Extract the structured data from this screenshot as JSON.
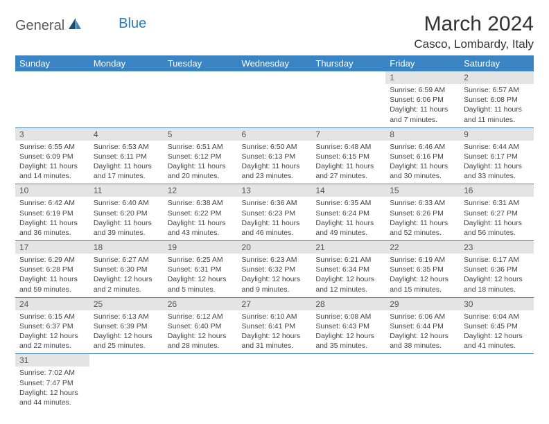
{
  "header": {
    "logo_part1": "General",
    "logo_part2": "Blue",
    "month_title": "March 2024",
    "location": "Casco, Lombardy, Italy"
  },
  "colors": {
    "header_bg": "#3b84c4",
    "header_text": "#ffffff",
    "daynum_bg": "#e4e4e4",
    "row_border": "#3b84c4",
    "logo_gray": "#5a5a5a",
    "logo_blue": "#2a7ab8",
    "sail_dark": "#1a4a7a",
    "sail_light": "#3b84c4"
  },
  "typography": {
    "title_fontsize": 30,
    "location_fontsize": 17,
    "header_fontsize": 13,
    "daynum_fontsize": 12,
    "body_fontsize": 10.5
  },
  "day_headers": [
    "Sunday",
    "Monday",
    "Tuesday",
    "Wednesday",
    "Thursday",
    "Friday",
    "Saturday"
  ],
  "weeks": [
    [
      {
        "num": "",
        "sunrise": "",
        "sunset": "",
        "daylight": ""
      },
      {
        "num": "",
        "sunrise": "",
        "sunset": "",
        "daylight": ""
      },
      {
        "num": "",
        "sunrise": "",
        "sunset": "",
        "daylight": ""
      },
      {
        "num": "",
        "sunrise": "",
        "sunset": "",
        "daylight": ""
      },
      {
        "num": "",
        "sunrise": "",
        "sunset": "",
        "daylight": ""
      },
      {
        "num": "1",
        "sunrise": "Sunrise: 6:59 AM",
        "sunset": "Sunset: 6:06 PM",
        "daylight": "Daylight: 11 hours and 7 minutes."
      },
      {
        "num": "2",
        "sunrise": "Sunrise: 6:57 AM",
        "sunset": "Sunset: 6:08 PM",
        "daylight": "Daylight: 11 hours and 11 minutes."
      }
    ],
    [
      {
        "num": "3",
        "sunrise": "Sunrise: 6:55 AM",
        "sunset": "Sunset: 6:09 PM",
        "daylight": "Daylight: 11 hours and 14 minutes."
      },
      {
        "num": "4",
        "sunrise": "Sunrise: 6:53 AM",
        "sunset": "Sunset: 6:11 PM",
        "daylight": "Daylight: 11 hours and 17 minutes."
      },
      {
        "num": "5",
        "sunrise": "Sunrise: 6:51 AM",
        "sunset": "Sunset: 6:12 PM",
        "daylight": "Daylight: 11 hours and 20 minutes."
      },
      {
        "num": "6",
        "sunrise": "Sunrise: 6:50 AM",
        "sunset": "Sunset: 6:13 PM",
        "daylight": "Daylight: 11 hours and 23 minutes."
      },
      {
        "num": "7",
        "sunrise": "Sunrise: 6:48 AM",
        "sunset": "Sunset: 6:15 PM",
        "daylight": "Daylight: 11 hours and 27 minutes."
      },
      {
        "num": "8",
        "sunrise": "Sunrise: 6:46 AM",
        "sunset": "Sunset: 6:16 PM",
        "daylight": "Daylight: 11 hours and 30 minutes."
      },
      {
        "num": "9",
        "sunrise": "Sunrise: 6:44 AM",
        "sunset": "Sunset: 6:17 PM",
        "daylight": "Daylight: 11 hours and 33 minutes."
      }
    ],
    [
      {
        "num": "10",
        "sunrise": "Sunrise: 6:42 AM",
        "sunset": "Sunset: 6:19 PM",
        "daylight": "Daylight: 11 hours and 36 minutes."
      },
      {
        "num": "11",
        "sunrise": "Sunrise: 6:40 AM",
        "sunset": "Sunset: 6:20 PM",
        "daylight": "Daylight: 11 hours and 39 minutes."
      },
      {
        "num": "12",
        "sunrise": "Sunrise: 6:38 AM",
        "sunset": "Sunset: 6:22 PM",
        "daylight": "Daylight: 11 hours and 43 minutes."
      },
      {
        "num": "13",
        "sunrise": "Sunrise: 6:36 AM",
        "sunset": "Sunset: 6:23 PM",
        "daylight": "Daylight: 11 hours and 46 minutes."
      },
      {
        "num": "14",
        "sunrise": "Sunrise: 6:35 AM",
        "sunset": "Sunset: 6:24 PM",
        "daylight": "Daylight: 11 hours and 49 minutes."
      },
      {
        "num": "15",
        "sunrise": "Sunrise: 6:33 AM",
        "sunset": "Sunset: 6:26 PM",
        "daylight": "Daylight: 11 hours and 52 minutes."
      },
      {
        "num": "16",
        "sunrise": "Sunrise: 6:31 AM",
        "sunset": "Sunset: 6:27 PM",
        "daylight": "Daylight: 11 hours and 56 minutes."
      }
    ],
    [
      {
        "num": "17",
        "sunrise": "Sunrise: 6:29 AM",
        "sunset": "Sunset: 6:28 PM",
        "daylight": "Daylight: 11 hours and 59 minutes."
      },
      {
        "num": "18",
        "sunrise": "Sunrise: 6:27 AM",
        "sunset": "Sunset: 6:30 PM",
        "daylight": "Daylight: 12 hours and 2 minutes."
      },
      {
        "num": "19",
        "sunrise": "Sunrise: 6:25 AM",
        "sunset": "Sunset: 6:31 PM",
        "daylight": "Daylight: 12 hours and 5 minutes."
      },
      {
        "num": "20",
        "sunrise": "Sunrise: 6:23 AM",
        "sunset": "Sunset: 6:32 PM",
        "daylight": "Daylight: 12 hours and 9 minutes."
      },
      {
        "num": "21",
        "sunrise": "Sunrise: 6:21 AM",
        "sunset": "Sunset: 6:34 PM",
        "daylight": "Daylight: 12 hours and 12 minutes."
      },
      {
        "num": "22",
        "sunrise": "Sunrise: 6:19 AM",
        "sunset": "Sunset: 6:35 PM",
        "daylight": "Daylight: 12 hours and 15 minutes."
      },
      {
        "num": "23",
        "sunrise": "Sunrise: 6:17 AM",
        "sunset": "Sunset: 6:36 PM",
        "daylight": "Daylight: 12 hours and 18 minutes."
      }
    ],
    [
      {
        "num": "24",
        "sunrise": "Sunrise: 6:15 AM",
        "sunset": "Sunset: 6:37 PM",
        "daylight": "Daylight: 12 hours and 22 minutes."
      },
      {
        "num": "25",
        "sunrise": "Sunrise: 6:13 AM",
        "sunset": "Sunset: 6:39 PM",
        "daylight": "Daylight: 12 hours and 25 minutes."
      },
      {
        "num": "26",
        "sunrise": "Sunrise: 6:12 AM",
        "sunset": "Sunset: 6:40 PM",
        "daylight": "Daylight: 12 hours and 28 minutes."
      },
      {
        "num": "27",
        "sunrise": "Sunrise: 6:10 AM",
        "sunset": "Sunset: 6:41 PM",
        "daylight": "Daylight: 12 hours and 31 minutes."
      },
      {
        "num": "28",
        "sunrise": "Sunrise: 6:08 AM",
        "sunset": "Sunset: 6:43 PM",
        "daylight": "Daylight: 12 hours and 35 minutes."
      },
      {
        "num": "29",
        "sunrise": "Sunrise: 6:06 AM",
        "sunset": "Sunset: 6:44 PM",
        "daylight": "Daylight: 12 hours and 38 minutes."
      },
      {
        "num": "30",
        "sunrise": "Sunrise: 6:04 AM",
        "sunset": "Sunset: 6:45 PM",
        "daylight": "Daylight: 12 hours and 41 minutes."
      }
    ],
    [
      {
        "num": "31",
        "sunrise": "Sunrise: 7:02 AM",
        "sunset": "Sunset: 7:47 PM",
        "daylight": "Daylight: 12 hours and 44 minutes."
      },
      {
        "num": "",
        "sunrise": "",
        "sunset": "",
        "daylight": ""
      },
      {
        "num": "",
        "sunrise": "",
        "sunset": "",
        "daylight": ""
      },
      {
        "num": "",
        "sunrise": "",
        "sunset": "",
        "daylight": ""
      },
      {
        "num": "",
        "sunrise": "",
        "sunset": "",
        "daylight": ""
      },
      {
        "num": "",
        "sunrise": "",
        "sunset": "",
        "daylight": ""
      },
      {
        "num": "",
        "sunrise": "",
        "sunset": "",
        "daylight": ""
      }
    ]
  ]
}
